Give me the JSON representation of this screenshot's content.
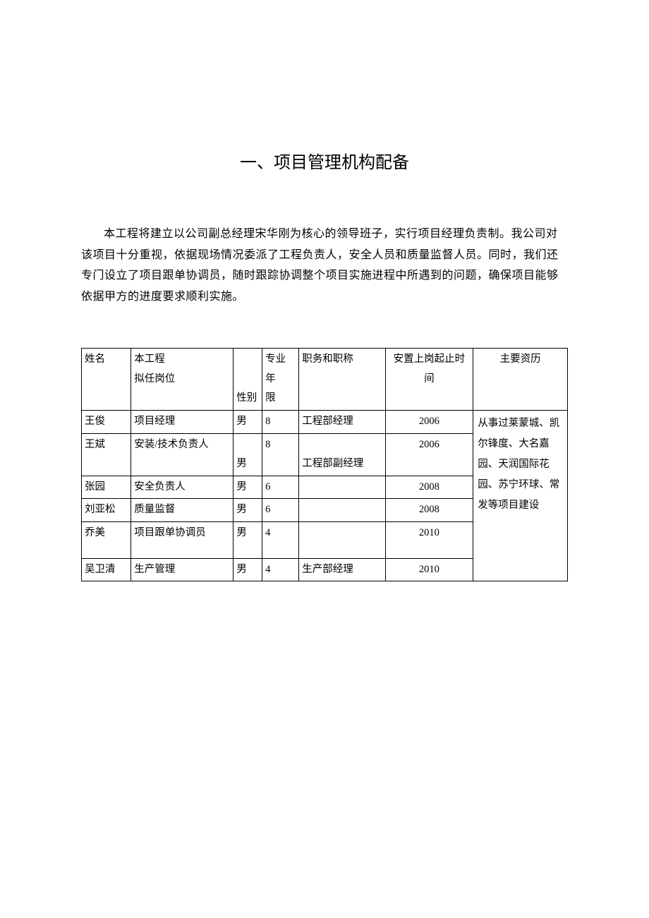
{
  "title": "一、项目管理机构配备",
  "paragraph": "本工程将建立以公司副总经理宋华刚为核心的领导班子，实行项目经理负责制。我公司对该项目十分重视，依据现场情况委派了工程负责人，安全人员和质量监督人员。同时，我们还专门设立了项目跟单协调员，随时跟踪协调整个项目实施进程中所遇到的问题，确保项目能够依据甲方的进度要求顺利实施。",
  "table": {
    "headers": {
      "name": "姓名",
      "position_line1": "本工程",
      "position_line2": "拟任岗位",
      "gender": "性别",
      "years_line1": "专业年",
      "years_line2": "限",
      "job_title": "职务和职称",
      "time_line1": "安置上岗起止时",
      "time_line2": "间",
      "experience": "主要资历"
    },
    "rows": [
      {
        "name": "王俊",
        "position": "项目经理",
        "gender": "男",
        "years": "8",
        "job_title": "工程部经理",
        "time": "2006"
      },
      {
        "name": "王斌",
        "position": "安装/技术负责人",
        "gender": "男",
        "years": "8",
        "job_title": "工程部副经理",
        "time": "2006"
      },
      {
        "name": "张园",
        "position": "安全负责人",
        "gender": "男",
        "years": "6",
        "job_title": "",
        "time": "2008"
      },
      {
        "name": "刘亚松",
        "position": "质量监督",
        "gender": "男",
        "years": "6",
        "job_title": "",
        "time": "2008"
      },
      {
        "name": "乔美",
        "position": "项目跟单协调员",
        "gender": "男",
        "years": "4",
        "job_title": "",
        "time": "2010"
      },
      {
        "name": "吴卫清",
        "position": "生产管理",
        "gender": "男",
        "years": "4",
        "job_title": "生产部经理",
        "time": "2010"
      }
    ],
    "experience_text": "从事过莱蒙城、凯尔锋度、大名嘉园、天润国际花园、苏宁环球、常发等项目建设"
  },
  "styling": {
    "background_color": "#ffffff",
    "text_color": "#000000",
    "border_color": "#000000",
    "title_fontsize": 24,
    "body_fontsize": 16,
    "table_fontsize": 14.5,
    "line_height": 1.85,
    "font_family": "SimSun"
  }
}
